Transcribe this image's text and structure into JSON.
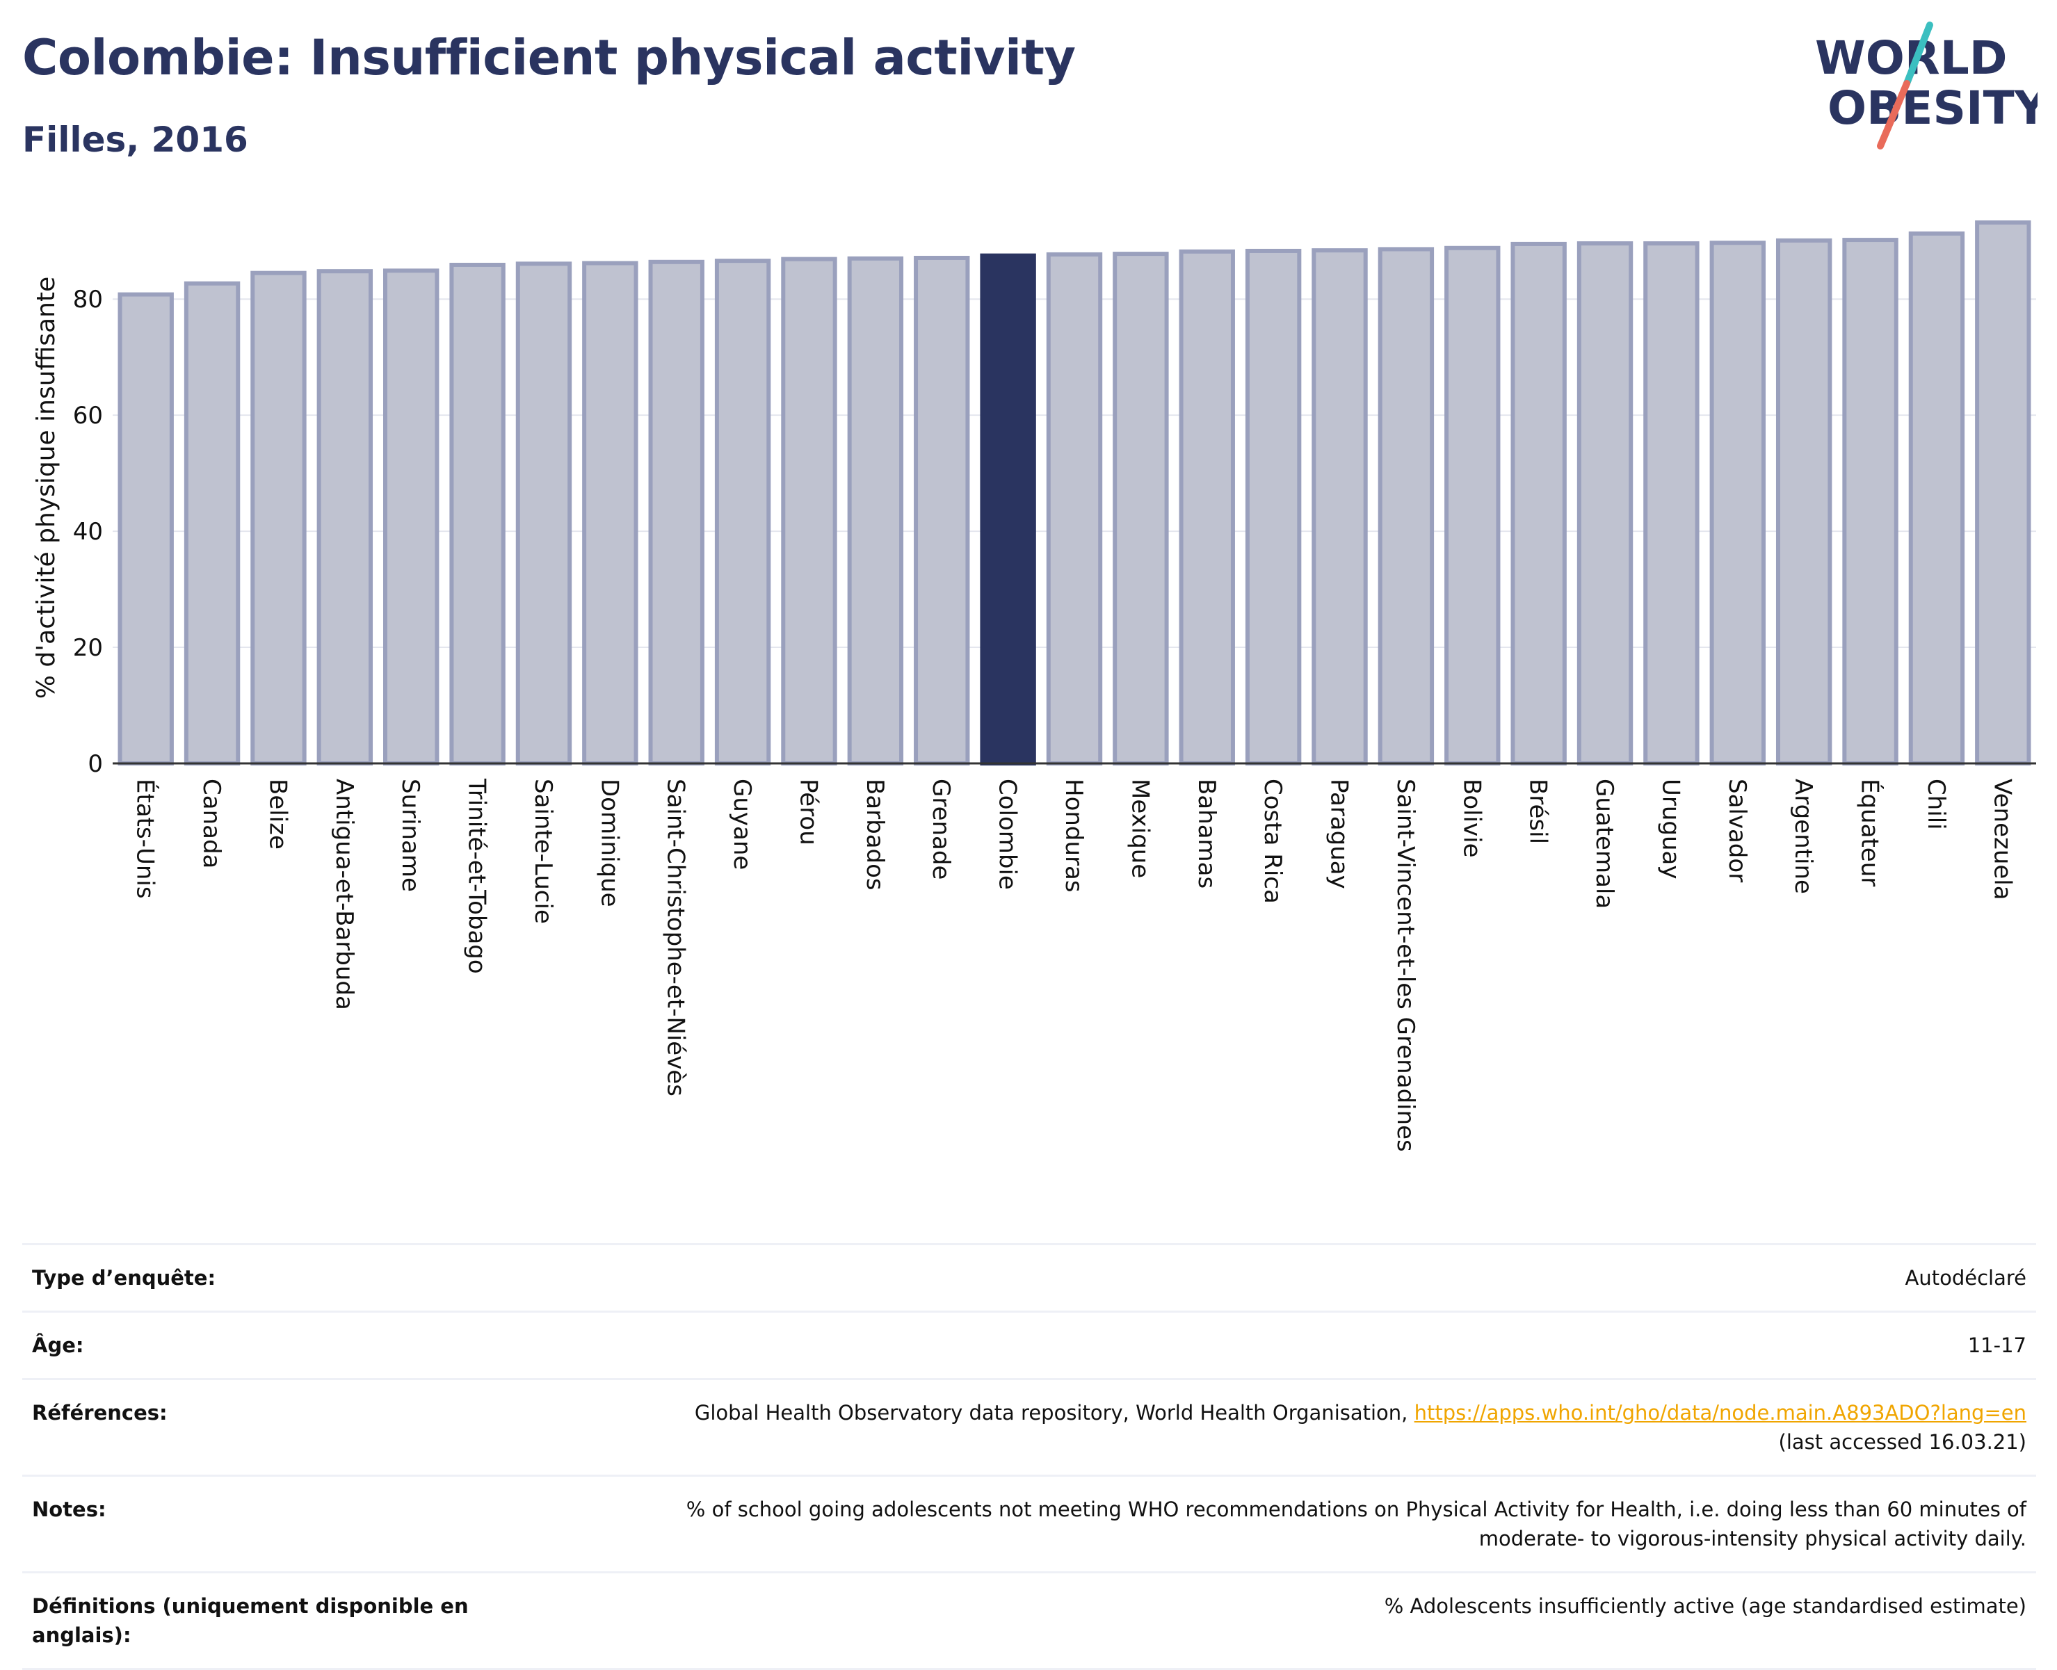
{
  "header": {
    "title": "Colombie: Insufficient physical activity",
    "subtitle": "Filles, 2016"
  },
  "logo": {
    "line1": "WORLD",
    "line2": "OBESITY",
    "colors": {
      "text": "#2a3460",
      "slash_top": "#3bbfc0",
      "slash_bottom": "#e96b5a"
    }
  },
  "colors": {
    "bar_default_fill": "#bfc2d0",
    "bar_default_stroke": "#9aa0bd",
    "bar_highlight": "#2a3460",
    "axis_text": "#111111",
    "gridline": "#e4e6ee"
  },
  "chart_data": {
    "type": "bar",
    "title": "",
    "xlabel": "",
    "ylabel": "% d'activité physique insuffisante",
    "ylim": [
      0,
      95
    ],
    "yticks": [
      0,
      20,
      40,
      60,
      80
    ],
    "grid": true,
    "highlight": "Colombie",
    "categories": [
      "États-Unis",
      "Canada",
      "Belize",
      "Antigua-et-Barbuda",
      "Suriname",
      "Trinité-et-Tobago",
      "Sainte-Lucie",
      "Dominique",
      "Saint-Christophe-et-Niévès",
      "Guyane",
      "Pérou",
      "Barbados",
      "Grenade",
      "Colombie",
      "Honduras",
      "Mexique",
      "Bahamas",
      "Costa Rica",
      "Paraguay",
      "Saint-Vincent-et-les Grenadines",
      "Bolivie",
      "Brésil",
      "Guatemala",
      "Uruguay",
      "Salvador",
      "Argentine",
      "Équateur",
      "Chili",
      "Venezuela"
    ],
    "values": [
      80.8,
      82.7,
      84.5,
      84.8,
      84.9,
      85.9,
      86.1,
      86.2,
      86.4,
      86.6,
      86.9,
      87.0,
      87.1,
      87.5,
      87.7,
      87.8,
      88.2,
      88.3,
      88.4,
      88.6,
      88.8,
      89.5,
      89.6,
      89.6,
      89.7,
      90.1,
      90.2,
      91.3,
      93.2
    ]
  },
  "info": {
    "rows": [
      {
        "label": "Type d’enquête:",
        "value": "Autodéclaré"
      },
      {
        "label": "Âge:",
        "value": "11-17"
      },
      {
        "label": "Références:",
        "value": "Global Health Observatory data repository, World Health Organisation,",
        "link": "https://apps.who.int/gho/data/node.main.A893ADO?lang=en",
        "value2": "(last accessed 16.03.21)"
      },
      {
        "label": "Notes:",
        "value": "% of school going adolescents not meeting WHO recommendations on Physical Activity for Health, i.e. doing less than 60 minutes of",
        "value2": "moderate- to vigorous-intensity physical activity daily."
      },
      {
        "label": "Définitions (uniquement disponible en anglais):",
        "value": "% Adolescents insufficiently active (age standardised estimate)"
      }
    ]
  }
}
